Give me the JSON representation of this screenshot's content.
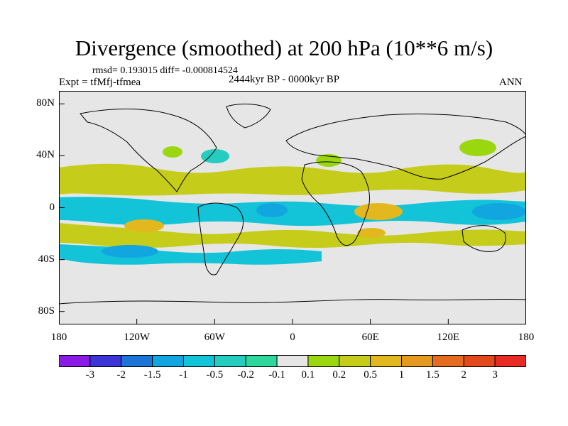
{
  "title": "Divergence (smoothed) at 200 hPa (10**6 m/s)",
  "stats": {
    "text": "rmsd= 0.193015 diff= -0.000814524"
  },
  "experiment": "Expt = tfMfj-tfmea",
  "period": "2444kyr BP - 0000kyr BP",
  "season": "ANN",
  "axes": {
    "y_ticks": [
      {
        "label": "80N",
        "lat": 80
      },
      {
        "label": "40N",
        "lat": 40
      },
      {
        "label": "0",
        "lat": 0
      },
      {
        "label": "40S",
        "lat": -40
      },
      {
        "label": "80S",
        "lat": -80
      }
    ],
    "x_ticks": [
      {
        "label": "180",
        "lon": -180
      },
      {
        "label": "120W",
        "lon": -120
      },
      {
        "label": "60W",
        "lon": -60
      },
      {
        "label": "0",
        "lon": 0
      },
      {
        "label": "60E",
        "lon": 60
      },
      {
        "label": "120E",
        "lon": 120
      },
      {
        "label": "180",
        "lon": 180
      }
    ]
  },
  "colorbar": {
    "labels": [
      "-3",
      "-2",
      "-1.5",
      "-1",
      "-0.5",
      "-0.2",
      "-0.1",
      "0.1",
      "0.2",
      "0.5",
      "1",
      "1.5",
      "2",
      "3"
    ],
    "colors": [
      "#8b1ae6",
      "#3b35d8",
      "#1c74d9",
      "#12a6e0",
      "#13c3d8",
      "#25ccc0",
      "#2ed79b",
      "#e6e6e6",
      "#9bd70f",
      "#c6cc1a",
      "#e3b81e",
      "#e59a1f",
      "#e46b1f",
      "#e3491b",
      "#e82b24"
    ]
  },
  "colors": {
    "ocean_background": "#e6e6e6",
    "coastline": "#000000"
  }
}
